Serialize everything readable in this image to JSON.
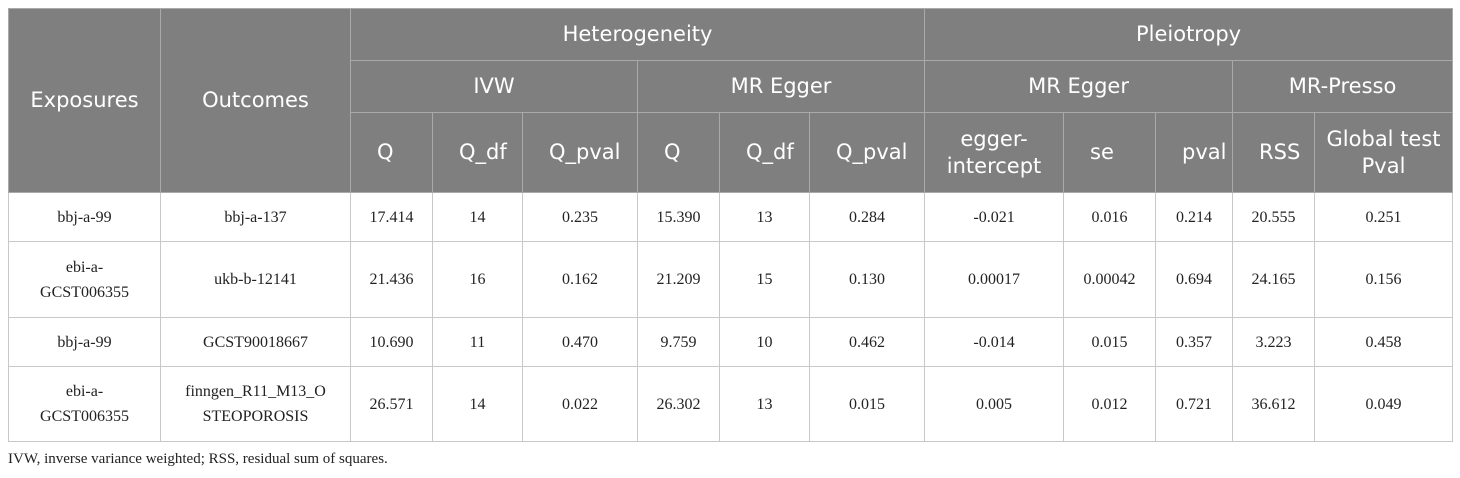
{
  "header": {
    "exposures": "Exposures",
    "outcomes": "Outcomes",
    "groups": [
      "Heterogeneity",
      "Pleiotropy"
    ],
    "subgroups": [
      "IVW",
      "MR Egger",
      "MR Egger",
      "MR-Presso"
    ],
    "columns": [
      "Q",
      "Q_df",
      "Q_pval",
      "Q",
      "Q_df",
      "Q_pval",
      "egger-intercept",
      "se",
      "pval",
      "RSS",
      "Global test Pval"
    ]
  },
  "rows": [
    [
      "bbj-a-99",
      "bbj-a-137",
      "17.414",
      "14",
      "0.235",
      "15.390",
      "13",
      "0.284",
      "-0.021",
      "0.016",
      "0.214",
      "20.555",
      "0.251"
    ],
    [
      "ebi-a-GCST006355",
      "ukb-b-12141",
      "21.436",
      "16",
      "0.162",
      "21.209",
      "15",
      "0.130",
      "0.00017",
      "0.00042",
      "0.694",
      "24.165",
      "0.156"
    ],
    [
      "bbj-a-99",
      "GCST90018667",
      "10.690",
      "11",
      "0.470",
      "9.759",
      "10",
      "0.462",
      "-0.014",
      "0.015",
      "0.357",
      "3.223",
      "0.458"
    ],
    [
      "ebi-a-GCST006355",
      "finngen_R11_M13_OSTEOPOROSIS",
      "26.571",
      "14",
      "0.022",
      "26.302",
      "13",
      "0.015",
      "0.005",
      "0.012",
      "0.721",
      "36.612",
      "0.049"
    ]
  ],
  "footnote": "IVW, inverse variance weighted; RSS, residual sum of squares."
}
